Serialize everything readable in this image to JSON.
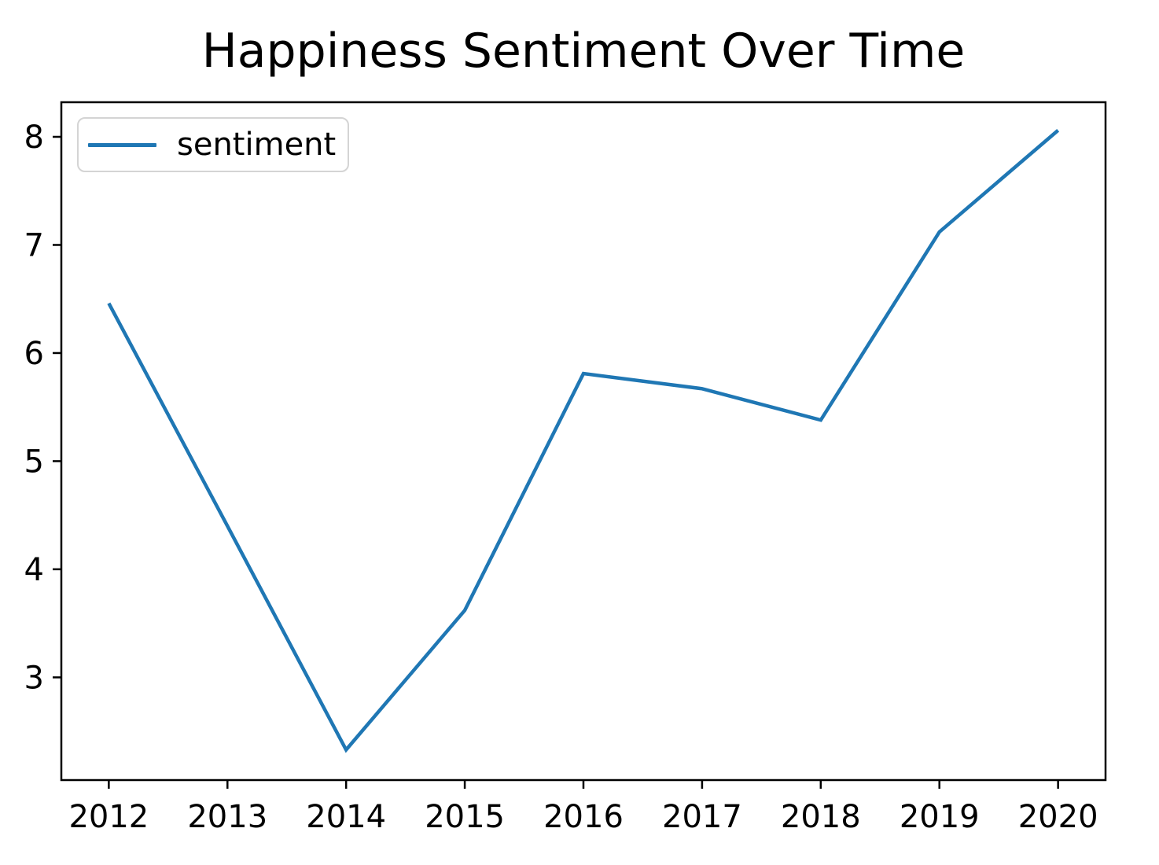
{
  "figure": {
    "background": "#ffffff",
    "spine_color": "#000000",
    "tick_color": "#000000"
  },
  "chart_data": {
    "type": "line",
    "title": "Happiness Sentiment Over Time",
    "xlabel": "",
    "ylabel": "",
    "x": [
      2012,
      2013,
      2014,
      2015,
      2016,
      2017,
      2018,
      2019,
      2020
    ],
    "series": [
      {
        "name": "sentiment",
        "color": "#1f77b4",
        "values": [
          6.46,
          4.4,
          2.33,
          3.62,
          5.81,
          5.67,
          5.38,
          7.12,
          8.06
        ]
      }
    ],
    "x_ticks": [
      2012,
      2013,
      2014,
      2015,
      2016,
      2017,
      2018,
      2019,
      2020
    ],
    "y_ticks": [
      3,
      4,
      5,
      6,
      7,
      8
    ],
    "xlim": [
      2011.6,
      2020.4
    ],
    "ylim": [
      2.05,
      8.32
    ],
    "grid": false,
    "legend": {
      "position": "upper left",
      "entries": [
        "sentiment"
      ]
    }
  }
}
